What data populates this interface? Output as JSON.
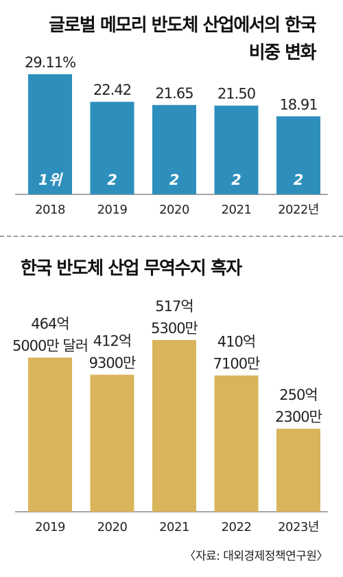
{
  "chart_data": [
    {
      "type": "bar",
      "title_lines": [
        "글로벌 메모리 반도체 산업에서의 한국",
        "비중 변화"
      ],
      "categories": [
        "2018",
        "2019",
        "2020",
        "2021",
        "2022년"
      ],
      "values": [
        29.11,
        22.42,
        21.65,
        21.5,
        18.91
      ],
      "value_labels": [
        "29.11%",
        "22.42",
        "21.65",
        "21.50",
        "18.91"
      ],
      "rank_labels": [
        "1위",
        "2",
        "2",
        "2",
        "2"
      ],
      "ylim": [
        0,
        29.11
      ],
      "bar_color": "#2e8fbd",
      "rank_label_color": "#ffffff"
    },
    {
      "type": "bar",
      "title": "한국 반도체 산업 무역수지 흑자",
      "categories": [
        "2019",
        "2020",
        "2021",
        "2022",
        "2023년"
      ],
      "values": [
        46450,
        41293,
        51753,
        41071,
        25023
      ],
      "value_labels": [
        [
          "464억",
          "5000만 달러"
        ],
        [
          "412억",
          "9300만"
        ],
        [
          "517억",
          "5300만"
        ],
        [
          "410억",
          "7100만"
        ],
        [
          "250억",
          "2300만"
        ]
      ],
      "unit": "백만 달러",
      "ylim": [
        0,
        51753
      ],
      "bar_color": "#d9b45b"
    }
  ],
  "source": "〈자료: 대외경제정책연구원〉"
}
